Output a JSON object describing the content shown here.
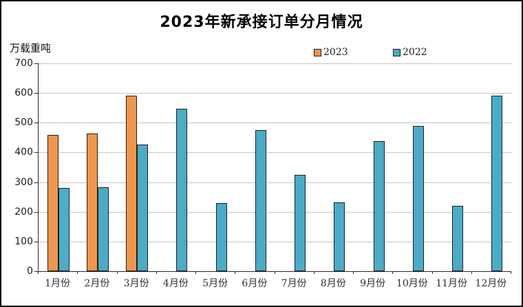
{
  "title": "2023年新承接订单分月情况",
  "unit_label": "万载重吨",
  "legend": [
    {
      "label": "2023",
      "color": "#F0964B"
    },
    {
      "label": "2022",
      "color": "#4AACC6"
    }
  ],
  "colors": {
    "axis": "#2b2b2b",
    "grid": "#8c8c8c",
    "bar_border": "#1f1f1f",
    "orange": "#F0964B",
    "teal": "#4AACC6"
  },
  "chart_data": {
    "type": "bar",
    "title": "2023年新承接订单分月情况",
    "ylabel": "万载重吨",
    "xlabel": "",
    "categories": [
      "1月份",
      "2月份",
      "3月份",
      "4月份",
      "5月份",
      "6月份",
      "7月份",
      "8月份",
      "9月份",
      "10月份",
      "11月份",
      "12月份"
    ],
    "series": [
      {
        "name": "2023",
        "color": "#F0964B",
        "values": [
          460,
          463,
          592,
          null,
          null,
          null,
          null,
          null,
          null,
          null,
          null,
          null
        ]
      },
      {
        "name": "2022",
        "color": "#4AACC6",
        "values": [
          280,
          282,
          426,
          546,
          230,
          476,
          325,
          232,
          439,
          490,
          220,
          590
        ]
      }
    ],
    "ylim": [
      0,
      700
    ],
    "ytick_step": 100,
    "grid": "horizontal-dotted",
    "legend_position": "top-center"
  }
}
